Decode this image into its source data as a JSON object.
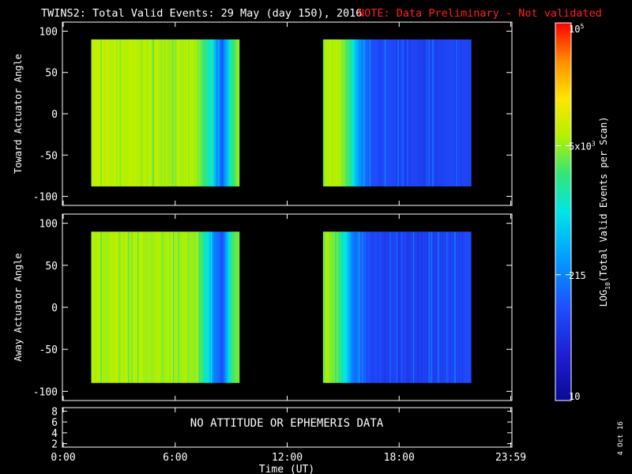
{
  "title": {
    "main": "TWINS2: Total Valid Events: 29 May (day 150), 2016",
    "note": "NOTE: Data Preliminary - Not validated",
    "note_color": "#ff2020"
  },
  "chart_data": [
    {
      "type": "heatmap",
      "name": "toward",
      "ylabel": "Toward Actuator Angle",
      "ylim": [
        -110,
        110
      ],
      "yticks": [
        "100",
        "50",
        "0",
        "-50",
        "-100"
      ],
      "ytick_values": [
        100,
        50,
        0,
        -50,
        -100
      ],
      "xlim": [
        0,
        24
      ],
      "data_y_range": [
        -88,
        90
      ],
      "segments": [
        {
          "start": "01:30",
          "end": "09:25",
          "start_h": 1.5,
          "end_h": 9.42
        },
        {
          "start": "13:55",
          "end": "21:50",
          "start_h": 13.92,
          "end_h": 21.83
        }
      ],
      "profile": [
        {
          "t": 1.5,
          "value": 7300
        },
        {
          "t": 2.0,
          "value": 6900
        },
        {
          "t": 3.0,
          "value": 6600
        },
        {
          "t": 4.0,
          "value": 6400
        },
        {
          "t": 5.0,
          "value": 6300
        },
        {
          "t": 6.0,
          "value": 6100
        },
        {
          "t": 7.0,
          "value": 5600
        },
        {
          "t": 7.6,
          "value": 2600
        },
        {
          "t": 8.0,
          "value": 700
        },
        {
          "t": 8.5,
          "value": 120
        },
        {
          "t": 9.0,
          "value": 2500
        },
        {
          "t": 9.42,
          "value": 5000
        },
        {
          "t": 13.92,
          "value": 6400
        },
        {
          "t": 14.8,
          "value": 5800
        },
        {
          "t": 15.3,
          "value": 2200
        },
        {
          "t": 15.8,
          "value": 300
        },
        {
          "t": 16.5,
          "value": 90
        },
        {
          "t": 18.0,
          "value": 70
        },
        {
          "t": 20.0,
          "value": 70
        },
        {
          "t": 21.83,
          "value": 75
        }
      ]
    },
    {
      "type": "heatmap",
      "name": "away",
      "ylabel": "Away Actuator Angle",
      "ylim": [
        -110,
        110
      ],
      "yticks": [
        "100",
        "50",
        "0",
        "-50",
        "-100"
      ],
      "ytick_values": [
        100,
        50,
        0,
        -50,
        -100
      ],
      "xlim": [
        0,
        24
      ],
      "data_y_range": [
        -90,
        90
      ],
      "segments": [
        {
          "start": "01:30",
          "end": "09:25",
          "start_h": 1.5,
          "end_h": 9.42
        },
        {
          "start": "13:55",
          "end": "21:50",
          "start_h": 13.92,
          "end_h": 21.83
        }
      ],
      "profile": [
        {
          "t": 1.5,
          "value": 6500
        },
        {
          "t": 2.5,
          "value": 6200
        },
        {
          "t": 3.5,
          "value": 6000
        },
        {
          "t": 4.5,
          "value": 5900
        },
        {
          "t": 5.5,
          "value": 5800
        },
        {
          "t": 6.5,
          "value": 5500
        },
        {
          "t": 7.2,
          "value": 4800
        },
        {
          "t": 7.6,
          "value": 1500
        },
        {
          "t": 8.0,
          "value": 300
        },
        {
          "t": 8.5,
          "value": 90
        },
        {
          "t": 9.0,
          "value": 2400
        },
        {
          "t": 9.42,
          "value": 4500
        },
        {
          "t": 13.92,
          "value": 5600
        },
        {
          "t": 14.5,
          "value": 4800
        },
        {
          "t": 15.0,
          "value": 1500
        },
        {
          "t": 15.5,
          "value": 200
        },
        {
          "t": 16.5,
          "value": 80
        },
        {
          "t": 18.0,
          "value": 65
        },
        {
          "t": 20.0,
          "value": 70
        },
        {
          "t": 21.83,
          "value": 80
        }
      ]
    }
  ],
  "bottom_panel": {
    "message": "NO ATTITUDE OR EPHEMERIS DATA",
    "yticks": [
      "8",
      "6",
      "4",
      "2"
    ],
    "ytick_values": [
      8,
      6,
      4,
      2
    ],
    "ylim": [
      1.5,
      8.5
    ]
  },
  "xaxis": {
    "label": "Time (UT)",
    "ticks": [
      {
        "label": "0:00",
        "hour": 0
      },
      {
        "label": "6:00",
        "hour": 6
      },
      {
        "label": "12:00",
        "hour": 12
      },
      {
        "label": "18:00",
        "hour": 18
      },
      {
        "label": "23:59",
        "hour": 23.98
      }
    ]
  },
  "colorbar": {
    "label": "LOG10(Total Valid Events per Scan)",
    "label_base": "LOG",
    "label_sub": "10",
    "label_rest": "(Total Valid Events per Scan)",
    "scale": "log",
    "range": [
      10,
      100000
    ],
    "ticks": [
      {
        "label": "10",
        "value": 10
      },
      {
        "label": "215",
        "value": 215
      },
      {
        "label": "5x10",
        "sup": "3",
        "value": 5000
      },
      {
        "label": "10",
        "sup": "5",
        "value": 100000
      }
    ]
  },
  "footer": {
    "date": "4 Oct 16"
  }
}
